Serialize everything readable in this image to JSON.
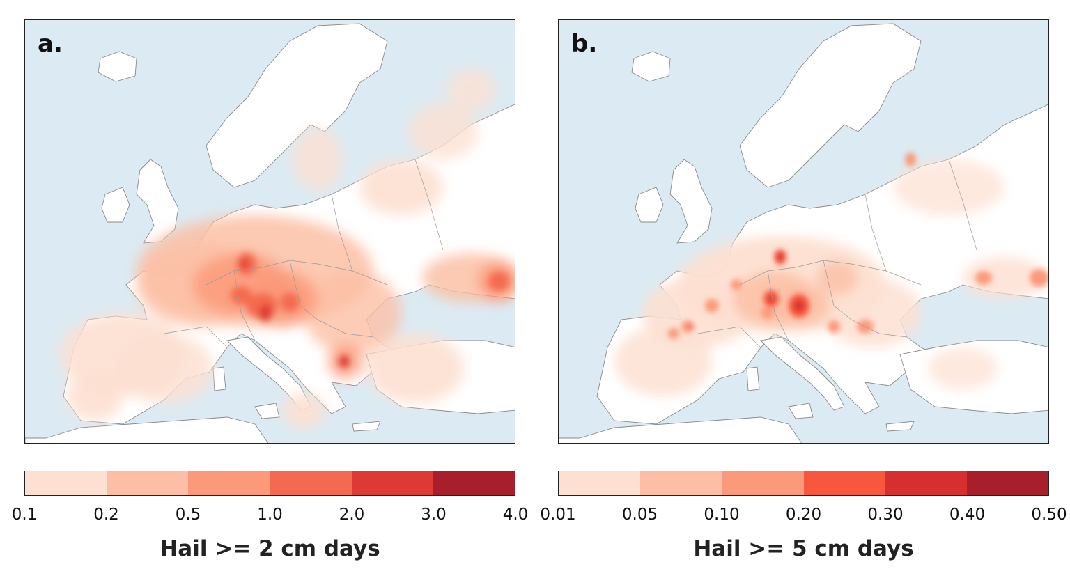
{
  "panels": [
    {
      "id": "a",
      "label": "a.",
      "colorbar": {
        "title": "Hail >= 2 cm days",
        "ticks": [
          "0.1",
          "0.2",
          "0.5",
          "1.0",
          "2.0",
          "3.0",
          "4.0"
        ],
        "colors": [
          "#fde0d2",
          "#fcbfa5",
          "#fb9a7a",
          "#f46a50",
          "#dd3a35",
          "#a61f2a"
        ]
      }
    },
    {
      "id": "b",
      "label": "b.",
      "colorbar": {
        "title": "Hail >= 5 cm days",
        "ticks": [
          "0.01",
          "0.05",
          "0.10",
          "0.20",
          "0.30",
          "0.40",
          "0.50"
        ],
        "colors": [
          "#fde0d2",
          "#fcbfa5",
          "#fb9a7a",
          "#f7573d",
          "#d62f2f",
          "#a61f2a"
        ]
      }
    }
  ],
  "map_colors": {
    "sea": "#dcebf3",
    "land": "#ffffff",
    "border": "#8a8a8a"
  }
}
